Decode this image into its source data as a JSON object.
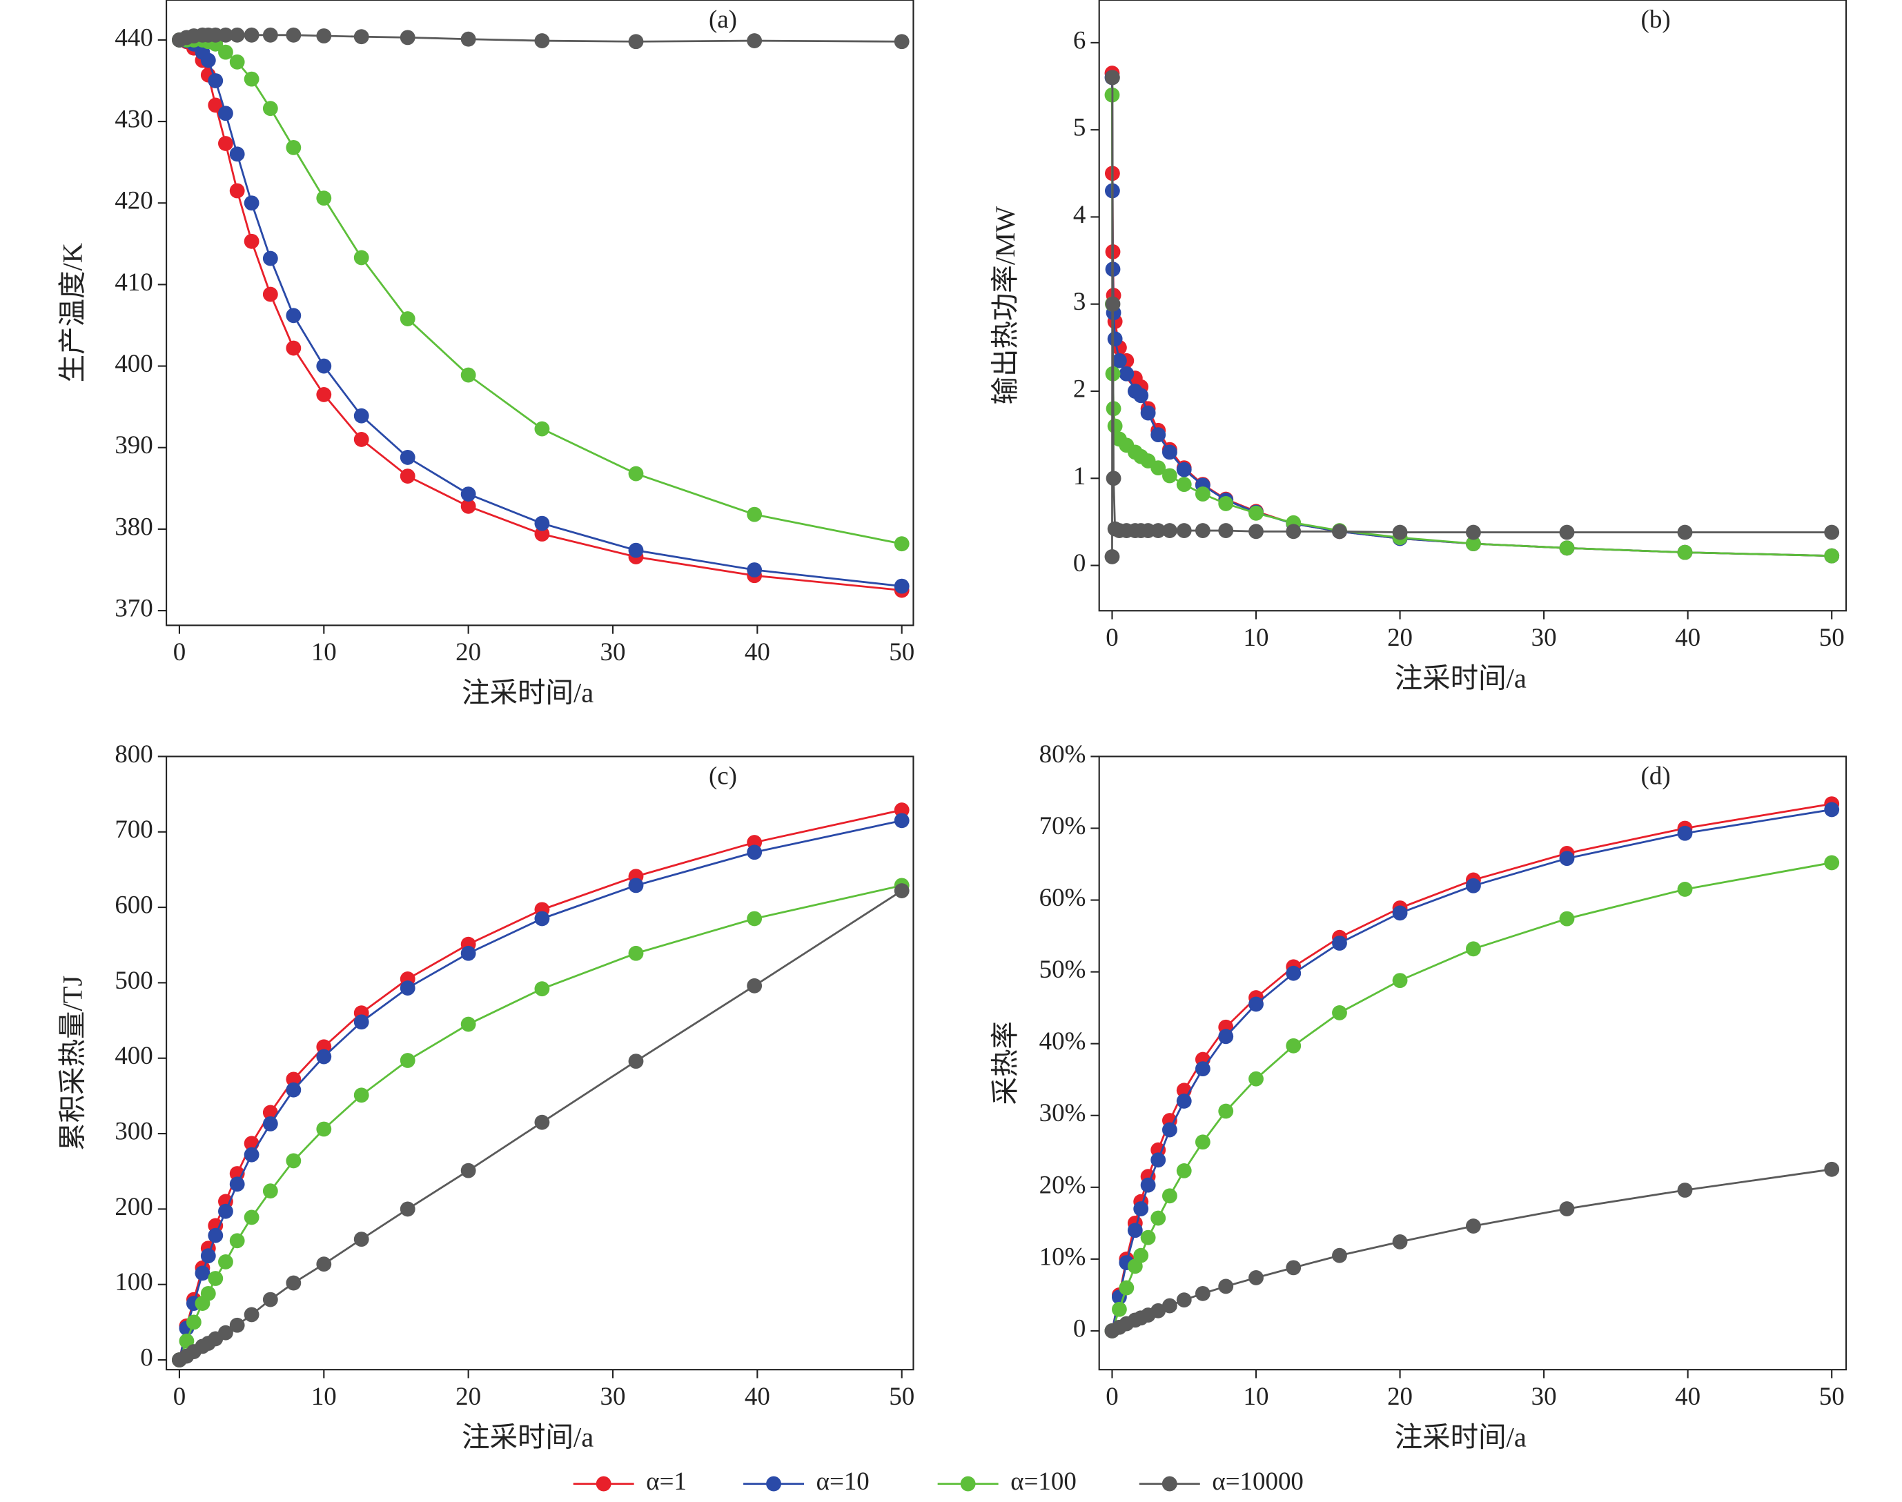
{
  "chart_data": [
    {
      "type": "line",
      "panel": "(a)",
      "xlabel": "注采时间/a",
      "ylabel": "生产温度/K",
      "xlim": [
        -0.9,
        50.8
      ],
      "ylim": [
        368.2,
        444.9
      ],
      "xticks": [
        0,
        10,
        20,
        30,
        40,
        50
      ],
      "yticks": [
        370,
        380,
        390,
        400,
        410,
        420,
        430,
        440
      ],
      "x": [
        0,
        0.5,
        1,
        1.6,
        2,
        2.5,
        3.2,
        4,
        5,
        6.3,
        7.9,
        10,
        12.6,
        15.8,
        20,
        25.1,
        31.6,
        39.8,
        50
      ],
      "series": [
        {
          "color": "#e8202a",
          "values": [
            440,
            439.8,
            439,
            437.5,
            435.7,
            432,
            427.3,
            421.5,
            415.3,
            408.8,
            402.2,
            396.5,
            391,
            386.5,
            382.8,
            379.4,
            376.6,
            374.3,
            372.5
          ]
        },
        {
          "color": "#2a4aa8",
          "values": [
            440,
            439.9,
            439.5,
            438.5,
            437.5,
            435,
            431,
            426,
            420,
            413.2,
            406.2,
            400,
            393.9,
            388.8,
            384.3,
            380.7,
            377.4,
            375,
            373
          ]
        },
        {
          "color": "#5dbf3a",
          "values": [
            440,
            440,
            440,
            440,
            439.8,
            439.5,
            438.5,
            437.3,
            435.2,
            431.6,
            426.8,
            420.6,
            413.3,
            405.8,
            398.9,
            392.3,
            386.8,
            381.8,
            378.2
          ]
        },
        {
          "color": "#5a5a5a",
          "values": [
            440,
            440.3,
            440.5,
            440.6,
            440.6,
            440.6,
            440.6,
            440.6,
            440.6,
            440.6,
            440.6,
            440.5,
            440.4,
            440.3,
            440.1,
            439.9,
            439.8,
            439.9,
            439.8
          ]
        }
      ]
    },
    {
      "type": "line",
      "panel": "(b)",
      "xlabel": "注采时间/a",
      "ylabel": "输出热功率/MW",
      "xlim": [
        -0.9,
        51
      ],
      "ylim": [
        -0.52,
        6.49
      ],
      "xticks": [
        0,
        10,
        20,
        30,
        40,
        50
      ],
      "yticks": [
        0,
        1,
        2,
        3,
        4,
        5,
        6
      ],
      "x": [
        0,
        0.02,
        0.05,
        0.1,
        0.2,
        0.5,
        1,
        1.6,
        2,
        2.5,
        3.2,
        4,
        5,
        6.3,
        7.9,
        10,
        12.6,
        15.8,
        20,
        25.1,
        31.6,
        39.8,
        50
      ],
      "series": [
        {
          "color": "#e8202a",
          "values": [
            5.65,
            4.5,
            3.6,
            3.1,
            2.8,
            2.5,
            2.35,
            2.15,
            2.05,
            1.8,
            1.55,
            1.33,
            1.12,
            0.93,
            0.76,
            0.62,
            0.48,
            0.39,
            0.31,
            0.25,
            0.2,
            0.15,
            0.11
          ]
        },
        {
          "color": "#2a4aa8",
          "values": [
            5.6,
            4.3,
            3.4,
            2.9,
            2.6,
            2.35,
            2.2,
            2.0,
            1.95,
            1.75,
            1.5,
            1.3,
            1.1,
            0.92,
            0.75,
            0.61,
            0.48,
            0.39,
            0.31,
            0.25,
            0.2,
            0.15,
            0.11
          ]
        },
        {
          "color": "#5dbf3a",
          "values": [
            5.4,
            3.0,
            2.2,
            1.8,
            1.6,
            1.45,
            1.38,
            1.3,
            1.25,
            1.2,
            1.12,
            1.03,
            0.93,
            0.82,
            0.71,
            0.6,
            0.49,
            0.4,
            0.32,
            0.25,
            0.2,
            0.15,
            0.11
          ]
        },
        {
          "color": "#5a5a5a",
          "values": [
            0.1,
            5.6,
            3.0,
            1.0,
            0.42,
            0.4,
            0.4,
            0.4,
            0.4,
            0.4,
            0.4,
            0.4,
            0.4,
            0.4,
            0.4,
            0.39,
            0.39,
            0.39,
            0.38,
            0.38,
            0.38,
            0.38,
            0.38
          ]
        }
      ]
    },
    {
      "type": "line",
      "panel": "(c)",
      "xlabel": "注采时间/a",
      "ylabel": "累积采热量/TJ",
      "xlim": [
        -0.9,
        50.8
      ],
      "ylim": [
        -12.9,
        800
      ],
      "xticks": [
        0,
        10,
        20,
        30,
        40,
        50
      ],
      "yticks": [
        0,
        100,
        200,
        300,
        400,
        500,
        600,
        700,
        800
      ],
      "x": [
        0,
        0.5,
        1,
        1.6,
        2,
        2.5,
        3.2,
        4,
        5,
        6.3,
        7.9,
        10,
        12.6,
        15.8,
        20,
        25.1,
        31.6,
        39.8,
        50
      ],
      "series": [
        {
          "color": "#e8202a",
          "values": [
            0,
            45,
            80,
            122,
            148,
            178,
            210,
            247,
            287,
            328,
            372,
            415,
            460,
            505,
            551,
            597,
            641,
            686,
            729
          ]
        },
        {
          "color": "#2a4aa8",
          "values": [
            0,
            42,
            75,
            115,
            138,
            165,
            197,
            233,
            272,
            313,
            358,
            402,
            448,
            493,
            539,
            585,
            629,
            673,
            715
          ]
        },
        {
          "color": "#5dbf3a",
          "values": [
            0,
            25,
            50,
            75,
            88,
            108,
            130,
            158,
            189,
            224,
            264,
            306,
            351,
            397,
            445,
            492,
            539,
            585,
            629
          ]
        },
        {
          "color": "#5a5a5a",
          "values": [
            0,
            5,
            11,
            18,
            22,
            28,
            36,
            46,
            60,
            80,
            102,
            127,
            160,
            200,
            251,
            315,
            396,
            496,
            622
          ]
        }
      ]
    },
    {
      "type": "line",
      "panel": "(d)",
      "xlabel": "注采时间/a",
      "ylabel": "采热率",
      "xlim": [
        -0.9,
        51
      ],
      "ylim": [
        -5.4,
        80
      ],
      "xticks": [
        0,
        10,
        20,
        30,
        40,
        50
      ],
      "yticks": [
        0,
        {
          "value": 10,
          "label": "10%"
        },
        {
          "value": 20,
          "label": "20%"
        },
        {
          "value": 30,
          "label": "30%"
        },
        {
          "value": 40,
          "label": "40%"
        },
        {
          "value": 50,
          "label": "50%"
        },
        {
          "value": 60,
          "label": "60%"
        },
        {
          "value": 70,
          "label": "70%"
        },
        {
          "value": 80,
          "label": "80%"
        }
      ],
      "x": [
        0,
        0.5,
        1,
        1.6,
        2,
        2.5,
        3.2,
        4,
        5,
        6.3,
        7.9,
        10,
        12.6,
        15.8,
        20,
        25.1,
        31.6,
        39.8,
        50
      ],
      "series": [
        {
          "color": "#e8202a",
          "values": [
            0,
            5,
            10,
            15,
            18,
            21.5,
            25.2,
            29.3,
            33.5,
            37.8,
            42.3,
            46.4,
            50.7,
            54.8,
            58.9,
            62.8,
            66.5,
            70,
            73.4
          ]
        },
        {
          "color": "#2a4aa8",
          "values": [
            0,
            4.7,
            9.5,
            14,
            17,
            20.3,
            23.8,
            28,
            32,
            36.5,
            41,
            45.5,
            49.8,
            54,
            58.2,
            62,
            65.8,
            69.3,
            72.6
          ]
        },
        {
          "color": "#5dbf3a",
          "values": [
            0,
            3,
            6,
            9,
            10.5,
            13,
            15.7,
            18.8,
            22.3,
            26.3,
            30.6,
            35.1,
            39.7,
            44.3,
            48.8,
            53.2,
            57.4,
            61.5,
            65.2
          ]
        },
        {
          "color": "#5a5a5a",
          "values": [
            0,
            0.5,
            1,
            1.5,
            1.8,
            2.2,
            2.8,
            3.5,
            4.3,
            5.2,
            6.2,
            7.4,
            8.8,
            10.5,
            12.4,
            14.6,
            17,
            19.6,
            22.5
          ]
        }
      ]
    }
  ],
  "legend": [
    {
      "name": "α=1",
      "color": "#e8202a"
    },
    {
      "name": "α=10",
      "color": "#2a4aa8"
    },
    {
      "name": "α=100",
      "color": "#5dbf3a"
    },
    {
      "name": "α=10000",
      "color": "#5a5a5a"
    }
  ]
}
